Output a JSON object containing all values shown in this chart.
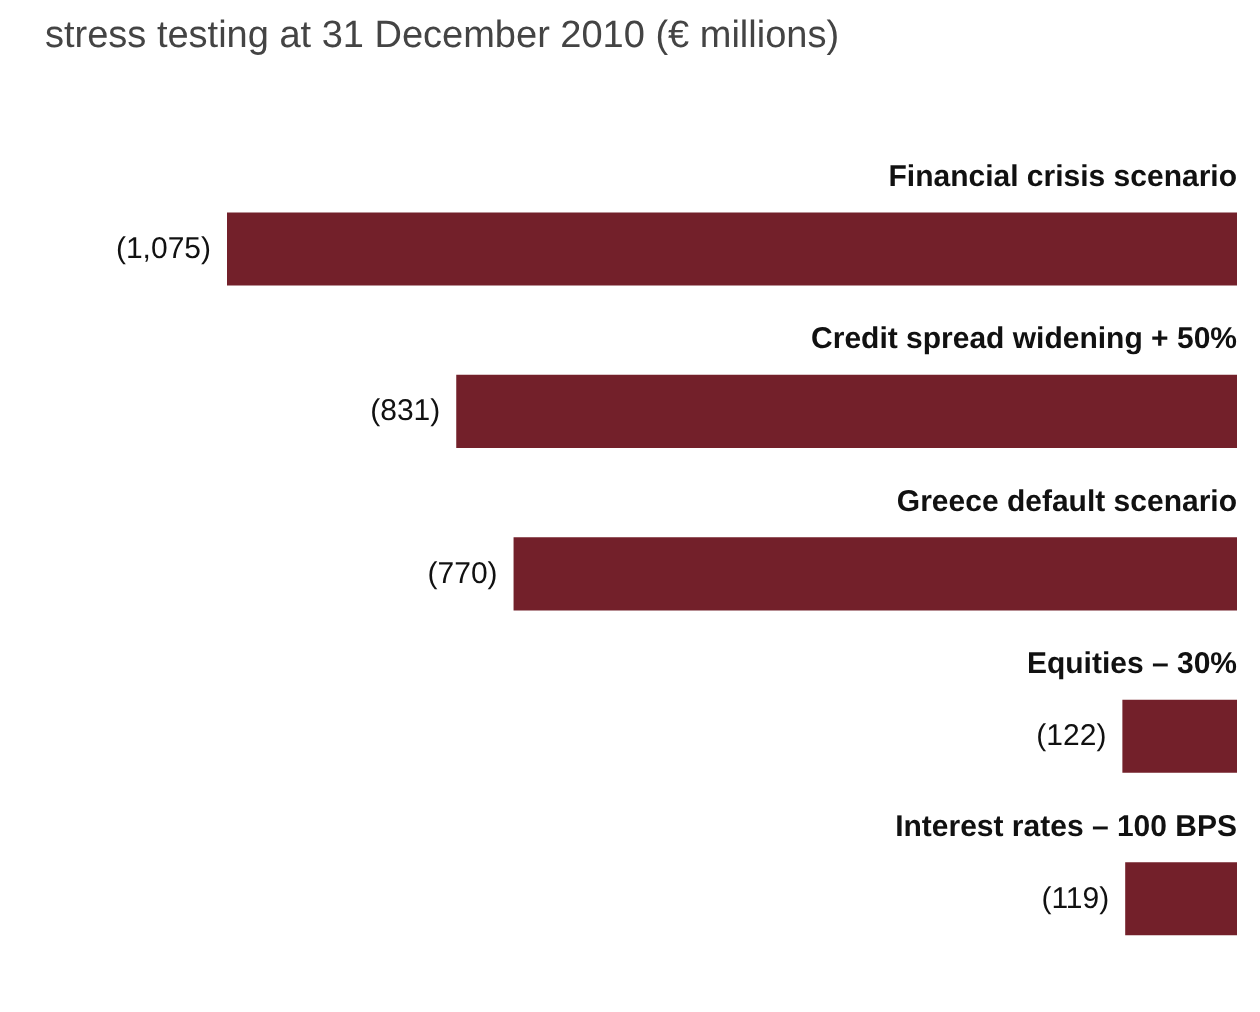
{
  "chart_data": {
    "type": "bar",
    "orientation": "horizontal",
    "title": "stress testing at 31 December 2010 (€ millions)",
    "categories": [
      "Financial crisis scenario",
      "Credit spread widening + 50%",
      "Greece default scenario",
      "Equities – 30%",
      "Interest rates – 100 BPS"
    ],
    "values": [
      -1075,
      -831,
      -770,
      -122,
      -119
    ],
    "value_labels": [
      "(1,075)",
      "(831)",
      "(770)",
      "(122)",
      "(119)"
    ],
    "color": "#73202a"
  }
}
